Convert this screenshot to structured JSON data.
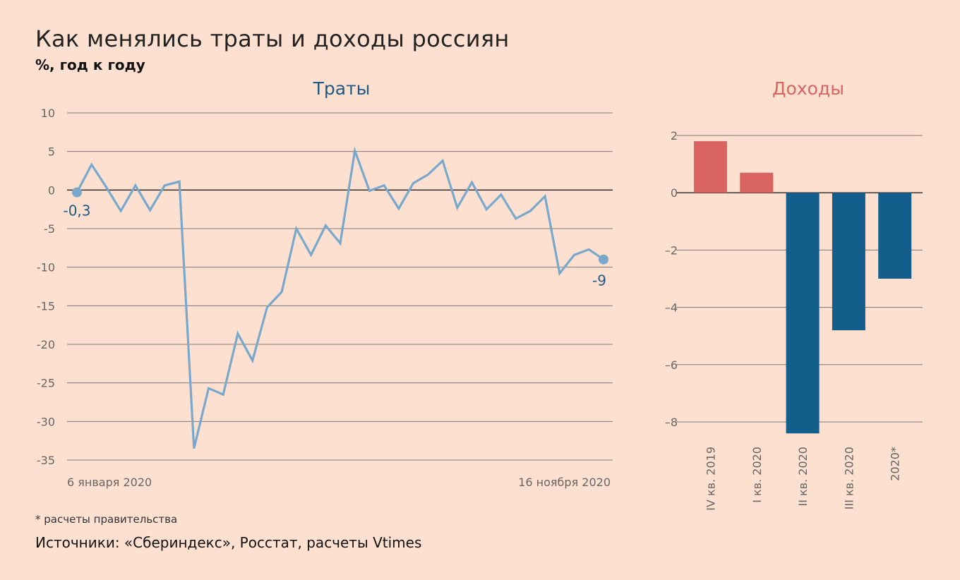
{
  "header": {
    "title": "Как менялись траты и доходы россиян",
    "subtitle": "%, год к году"
  },
  "footer": {
    "footnote": "* расчеты правительства",
    "sources": "Источники: «Сбериндекс», Росстат, расчеты Vtimes"
  },
  "colors": {
    "background": "#fde0d0",
    "line": "#78a9cc",
    "bar_positive": "#d96460",
    "bar_negative": "#135e8b",
    "spending_title": "#1f5a84",
    "income_title": "#d96460"
  },
  "chart_data": [
    {
      "type": "line",
      "title": "Траты",
      "ylim": [
        -35,
        10
      ],
      "yticks": [
        10,
        5,
        0,
        -5,
        -10,
        -15,
        -20,
        -25,
        -30,
        -35
      ],
      "ytick_labels": [
        "10",
        "5",
        "0",
        "-5",
        "-10",
        "-15",
        "-20",
        "-25",
        "-30",
        "-35"
      ],
      "x_labels": {
        "start": "6 января 2020",
        "end": "16 ноября 2020"
      },
      "grid": true,
      "series": [
        {
          "values": [
            -0.3,
            3.3,
            0.4,
            -2.7,
            0.6,
            -2.6,
            0.6,
            1.1,
            -33.5,
            -25.7,
            -26.5,
            -18.6,
            -22.1,
            -15.2,
            -13.2,
            -5.0,
            -8.4,
            -4.6,
            -6.9,
            5.1,
            -0.1,
            0.6,
            -2.4,
            0.9,
            2.0,
            3.8,
            -2.3,
            1.0,
            -2.5,
            -0.6,
            -3.7,
            -2.7,
            -0.8,
            -10.8,
            -8.4,
            -7.7,
            -9.0
          ]
        }
      ],
      "annotations": [
        {
          "text": "-0,3",
          "point_index": 0
        },
        {
          "text": "-9",
          "point_index": 36
        }
      ]
    },
    {
      "type": "bar",
      "title": "Доходы",
      "categories": [
        "IV кв. 2019",
        "I кв. 2020",
        "II кв. 2020",
        "III кв. 2020",
        "2020*"
      ],
      "values": [
        1.8,
        0.7,
        -8.4,
        -4.8,
        -3.0
      ],
      "ylim": [
        -8,
        2
      ],
      "yticks": [
        2,
        0,
        -2,
        -4,
        -6,
        -8
      ],
      "ytick_labels": [
        "2",
        "0",
        "–2",
        "–4",
        "–6",
        "–8"
      ],
      "grid": true
    }
  ]
}
